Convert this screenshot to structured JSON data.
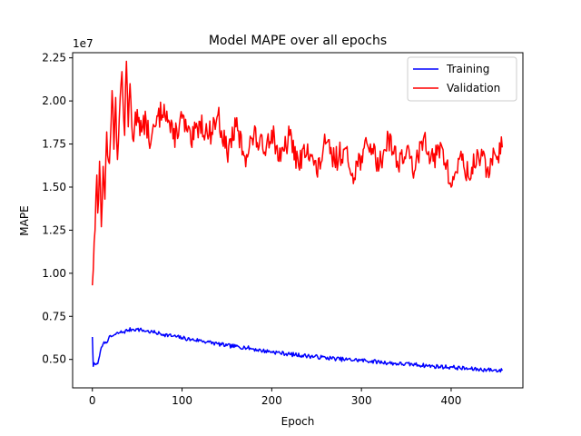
{
  "chart_data": {
    "type": "line",
    "title": "Model MAPE over all epochs",
    "xlabel": "Epoch",
    "ylabel": "MAPE",
    "y_offset_text": "1e7",
    "xlim": [
      -22,
      480
    ],
    "ylim": [
      3.35,
      22.8
    ],
    "xticks": [
      0,
      100,
      200,
      300,
      400
    ],
    "yticks": [
      5,
      7.5,
      10,
      12.5,
      15,
      17.5,
      20,
      22.5
    ],
    "ytick_labels": [
      "0.50",
      "0.75",
      "1.00",
      "1.25",
      "1.50",
      "1.75",
      "2.00",
      "2.25"
    ],
    "y_scale_note": "values in units of 1e6 (tick labels are ×1e7)",
    "grid": false,
    "legend_position": "top-right",
    "series_anchor_points": {
      "Training": {
        "color": "#0000ff",
        "x": [
          0,
          1,
          2,
          4,
          6,
          8,
          10,
          12,
          15,
          18,
          22,
          26,
          30,
          35,
          40,
          45,
          50,
          55,
          60,
          65,
          70,
          80,
          90,
          100,
          110,
          120,
          130,
          140,
          150,
          160,
          170,
          180,
          190,
          200,
          220,
          240,
          260,
          280,
          300,
          320,
          340,
          360,
          380,
          400,
          420,
          440,
          457
        ],
        "y": [
          6.3,
          4.6,
          4.8,
          4.7,
          4.75,
          5.2,
          5.7,
          5.9,
          6.0,
          6.2,
          6.35,
          6.45,
          6.55,
          6.6,
          6.7,
          6.75,
          6.75,
          6.7,
          6.65,
          6.6,
          6.55,
          6.45,
          6.35,
          6.25,
          6.15,
          6.1,
          6.0,
          5.9,
          5.8,
          5.75,
          5.7,
          5.6,
          5.5,
          5.45,
          5.3,
          5.2,
          5.1,
          5.0,
          4.95,
          4.85,
          4.75,
          4.7,
          4.6,
          4.55,
          4.45,
          4.4,
          4.35
        ]
      },
      "Validation": {
        "color": "#ff0000",
        "x": [
          0,
          1,
          2,
          3,
          4,
          5,
          6,
          7,
          8,
          9,
          10,
          12,
          14,
          16,
          18,
          20,
          22,
          24,
          26,
          28,
          30,
          33,
          36,
          38,
          40,
          42,
          45,
          50,
          55,
          60,
          65,
          70,
          80,
          90,
          100,
          110,
          120,
          130,
          140,
          150,
          160,
          170,
          180,
          190,
          200,
          210,
          220,
          230,
          240,
          250,
          260,
          270,
          280,
          290,
          300,
          310,
          320,
          330,
          340,
          350,
          360,
          370,
          380,
          390,
          400,
          410,
          420,
          430,
          440,
          450,
          457
        ],
        "y": [
          9.3,
          10.2,
          11.8,
          12.5,
          14.5,
          15.7,
          13.5,
          14.3,
          16.5,
          15.0,
          12.7,
          16.2,
          14.3,
          18.2,
          16.5,
          17.6,
          20.6,
          17.2,
          20.2,
          16.6,
          19.0,
          21.7,
          18.0,
          22.3,
          18.5,
          21.0,
          17.8,
          19.5,
          18.2,
          18.8,
          17.5,
          18.5,
          19.8,
          17.8,
          19.0,
          17.5,
          18.8,
          18.0,
          19.2,
          17.0,
          18.5,
          16.8,
          18.0,
          17.2,
          18.3,
          16.5,
          18.0,
          16.2,
          17.5,
          15.8,
          17.5,
          16.5,
          17.2,
          15.8,
          16.8,
          17.5,
          16.2,
          18.0,
          16.5,
          17.0,
          16.0,
          18.0,
          16.5,
          17.3,
          15.0,
          16.8,
          15.5,
          17.0,
          16.0,
          16.8,
          17.3
        ]
      }
    },
    "legend": {
      "entries": [
        {
          "label": "Training",
          "color": "#0000ff"
        },
        {
          "label": "Validation",
          "color": "#ff0000"
        }
      ]
    }
  }
}
